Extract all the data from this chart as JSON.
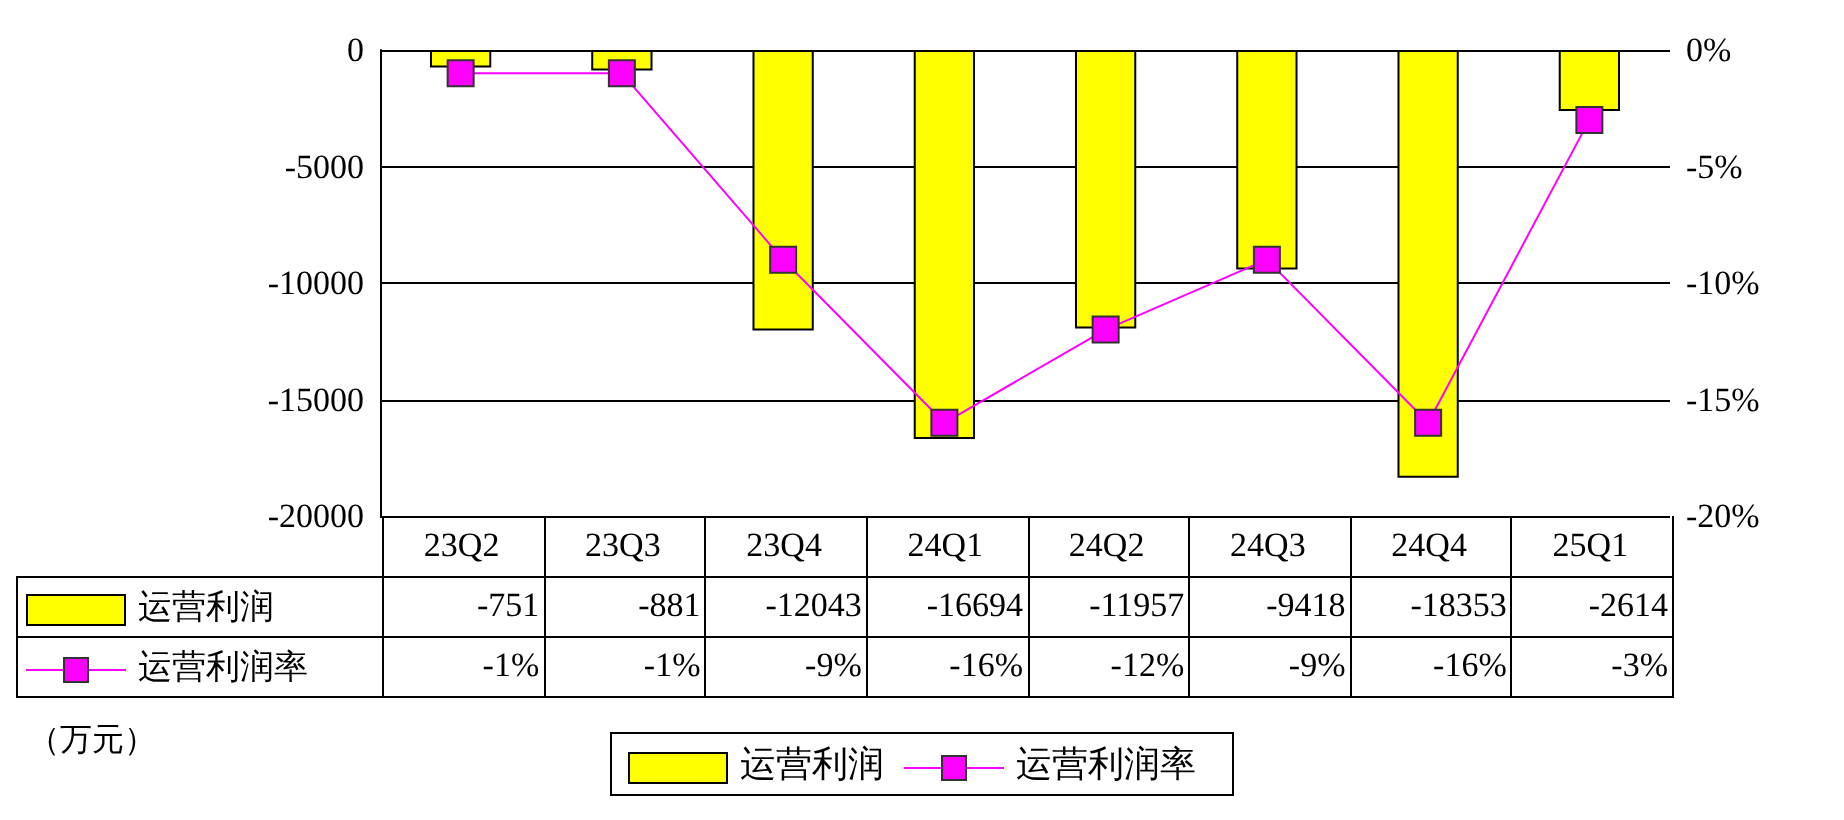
{
  "chart_data": {
    "type": "bar",
    "categories": [
      "23Q2",
      "23Q3",
      "23Q4",
      "24Q1",
      "24Q2",
      "24Q3",
      "24Q4",
      "25Q1"
    ],
    "series": [
      {
        "name": "运营利润",
        "color": "#ffff00",
        "values": [
          -751,
          -881,
          -12043,
          -16694,
          -11957,
          -9418,
          -18353,
          -2614
        ],
        "value_labels": [
          "-751",
          "-881",
          "-12043",
          "-16694",
          "-11957",
          "-9418",
          "-18353",
          "-2614"
        ]
      },
      {
        "name": "运营利润率",
        "type": "line",
        "axis": "y2",
        "color": "#ff00ff",
        "marker": "square",
        "line_style": "solid",
        "values": [
          -1,
          -1,
          -9,
          -16,
          -12,
          -9,
          -16,
          -3
        ],
        "value_labels": [
          "-1%",
          "-1%",
          "-9%",
          "-16%",
          "-12%",
          "-9%",
          "-16%",
          "-3%"
        ]
      }
    ],
    "ylim": [
      -20000,
      0
    ],
    "yticks": [
      -20000,
      -15000,
      -10000,
      -5000,
      0
    ],
    "y2lim": [
      -20,
      0
    ],
    "y2ticks": [
      {
        "value": -20,
        "label": "-20%"
      },
      {
        "value": -15,
        "label": "-15%"
      },
      {
        "value": -10,
        "label": "-10%"
      },
      {
        "value": -5,
        "label": "-5%"
      },
      {
        "value": 0,
        "label": "0%"
      }
    ],
    "grid": "y",
    "legend": "bottom",
    "annotations": [
      "（万元）"
    ]
  }
}
